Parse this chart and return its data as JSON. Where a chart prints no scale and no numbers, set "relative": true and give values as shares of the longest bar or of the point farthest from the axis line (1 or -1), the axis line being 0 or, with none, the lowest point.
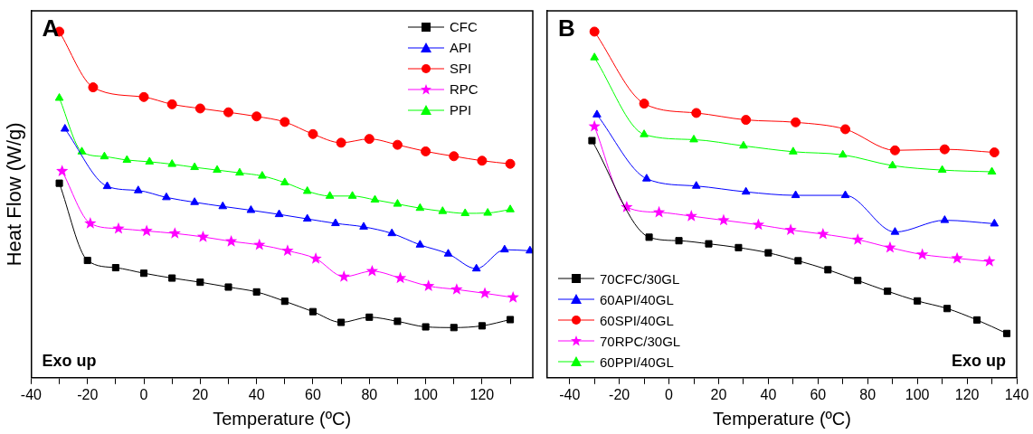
{
  "chart_data": [
    {
      "type": "line",
      "relative": true,
      "xlabel": "Temperature (ºC)",
      "ylabel": "Heat Flow (W/g)",
      "xlim": [
        -40,
        138
      ],
      "xticks": [
        -40,
        {
          "value": -30,
          "label": null
        },
        -20,
        {
          "value": -10,
          "label": null
        },
        0,
        {
          "value": 10,
          "label": null
        },
        20,
        {
          "value": 30,
          "label": null
        },
        40,
        {
          "value": 50,
          "label": null
        },
        60,
        {
          "value": 70,
          "label": null
        },
        80,
        {
          "value": 90,
          "label": null
        },
        100,
        {
          "value": 110,
          "label": null
        },
        120,
        {
          "value": 130,
          "label": null
        }
      ],
      "legend": "top right",
      "grid": false,
      "annotations": [
        "A",
        "Exo up"
      ],
      "series": [
        {
          "name": "CFC",
          "color": "#000000",
          "marker": "square",
          "x": [
            -30,
            -20,
            -10,
            0,
            10,
            20,
            30,
            40,
            50,
            60,
            70,
            80,
            90,
            100,
            110,
            120,
            130
          ],
          "values": [
            0.562,
            0.339,
            0.318,
            0.302,
            0.288,
            0.276,
            0.262,
            0.248,
            0.221,
            0.191,
            0.16,
            0.175,
            0.163,
            0.147,
            0.145,
            0.15,
            0.168
          ]
        },
        {
          "name": "API",
          "color": "#0000ff",
          "marker": "triangle",
          "x": [
            -28,
            -13,
            -2,
            8,
            18,
            28,
            38,
            48,
            58,
            68,
            78,
            88,
            98,
            108,
            118,
            128,
            137
          ],
          "values": [
            0.719,
            0.553,
            0.541,
            0.521,
            0.507,
            0.495,
            0.484,
            0.472,
            0.459,
            0.446,
            0.436,
            0.417,
            0.384,
            0.358,
            0.315,
            0.37,
            0.367
          ]
        },
        {
          "name": "SPI",
          "color": "#ff0000",
          "marker": "circle",
          "x": [
            -30,
            -18,
            0,
            10,
            20,
            30,
            40,
            50,
            60,
            70,
            80,
            90,
            100,
            110,
            120,
            130
          ],
          "values": [
            1.0,
            0.839,
            0.811,
            0.79,
            0.778,
            0.767,
            0.755,
            0.739,
            0.704,
            0.679,
            0.69,
            0.673,
            0.654,
            0.64,
            0.627,
            0.618
          ]
        },
        {
          "name": "RPC",
          "color": "#ff00ff",
          "marker": "star",
          "x": [
            -29,
            -19,
            -9,
            1,
            11,
            21,
            31,
            41,
            51,
            61,
            71,
            81,
            91,
            101,
            111,
            121,
            131
          ],
          "values": [
            0.597,
            0.446,
            0.431,
            0.424,
            0.417,
            0.407,
            0.394,
            0.384,
            0.367,
            0.344,
            0.292,
            0.308,
            0.288,
            0.265,
            0.255,
            0.244,
            0.232
          ]
        },
        {
          "name": "PPI",
          "color": "#00ff00",
          "marker": "triangle",
          "x": [
            -30,
            -22,
            -14,
            -6,
            2,
            10,
            18,
            26,
            34,
            42,
            50,
            58,
            66,
            74,
            82,
            90,
            98,
            106,
            114,
            122,
            130
          ],
          "values": [
            0.808,
            0.653,
            0.639,
            0.629,
            0.624,
            0.617,
            0.608,
            0.6,
            0.592,
            0.583,
            0.564,
            0.539,
            0.525,
            0.525,
            0.514,
            0.502,
            0.49,
            0.481,
            0.475,
            0.476,
            0.486
          ]
        }
      ]
    },
    {
      "type": "line",
      "relative": true,
      "xlabel": "Temperature (ºC)",
      "xlim": [
        -49,
        140
      ],
      "xticks": [
        -40,
        {
          "value": -30,
          "label": null
        },
        -20,
        {
          "value": -10,
          "label": null
        },
        0,
        {
          "value": 10,
          "label": null
        },
        20,
        {
          "value": 30,
          "label": null
        },
        40,
        {
          "value": 50,
          "label": null
        },
        60,
        {
          "value": 70,
          "label": null
        },
        80,
        {
          "value": 90,
          "label": null
        },
        100,
        {
          "value": 110,
          "label": null
        },
        120,
        {
          "value": 130,
          "label": null
        },
        140
      ],
      "legend": "bottom left",
      "grid": false,
      "annotations": [
        "B",
        "Exo up"
      ],
      "series": [
        {
          "name": "70CFC/30GL",
          "color": "#000000",
          "marker": "square",
          "x": [
            -31,
            -8,
            4,
            16,
            28,
            40,
            52,
            64,
            76,
            88,
            100,
            112,
            124,
            136
          ],
          "values": [
            0.685,
            0.406,
            0.396,
            0.387,
            0.376,
            0.361,
            0.338,
            0.312,
            0.281,
            0.25,
            0.222,
            0.2,
            0.167,
            0.128
          ]
        },
        {
          "name": "60API/40GL",
          "color": "#0000ff",
          "marker": "triangle",
          "x": [
            -29,
            -9,
            11,
            31,
            51,
            71,
            91,
            111,
            131
          ],
          "values": [
            0.76,
            0.575,
            0.554,
            0.537,
            0.527,
            0.527,
            0.421,
            0.455,
            0.445
          ]
        },
        {
          "name": "60SPI/40GL",
          "color": "#ff0000",
          "marker": "circle",
          "x": [
            -30,
            -10,
            11,
            31,
            51,
            71,
            91,
            111,
            131
          ],
          "values": [
            1.0,
            0.792,
            0.765,
            0.745,
            0.738,
            0.718,
            0.657,
            0.66,
            0.651
          ]
        },
        {
          "name": "70RPC/30GL",
          "color": "#ff00ff",
          "marker": "star",
          "x": [
            -30,
            -17,
            -4,
            9,
            22,
            36,
            49,
            62,
            76,
            89,
            102,
            116,
            129
          ],
          "values": [
            0.726,
            0.493,
            0.478,
            0.467,
            0.455,
            0.442,
            0.427,
            0.415,
            0.399,
            0.376,
            0.356,
            0.345,
            0.336
          ]
        },
        {
          "name": "60PPI/40GL",
          "color": "#00ff00",
          "marker": "triangle",
          "x": [
            -30,
            -10,
            10,
            30,
            50,
            70,
            90,
            110,
            130
          ],
          "values": [
            0.925,
            0.703,
            0.688,
            0.67,
            0.653,
            0.644,
            0.613,
            0.6,
            0.595
          ]
        }
      ]
    }
  ]
}
